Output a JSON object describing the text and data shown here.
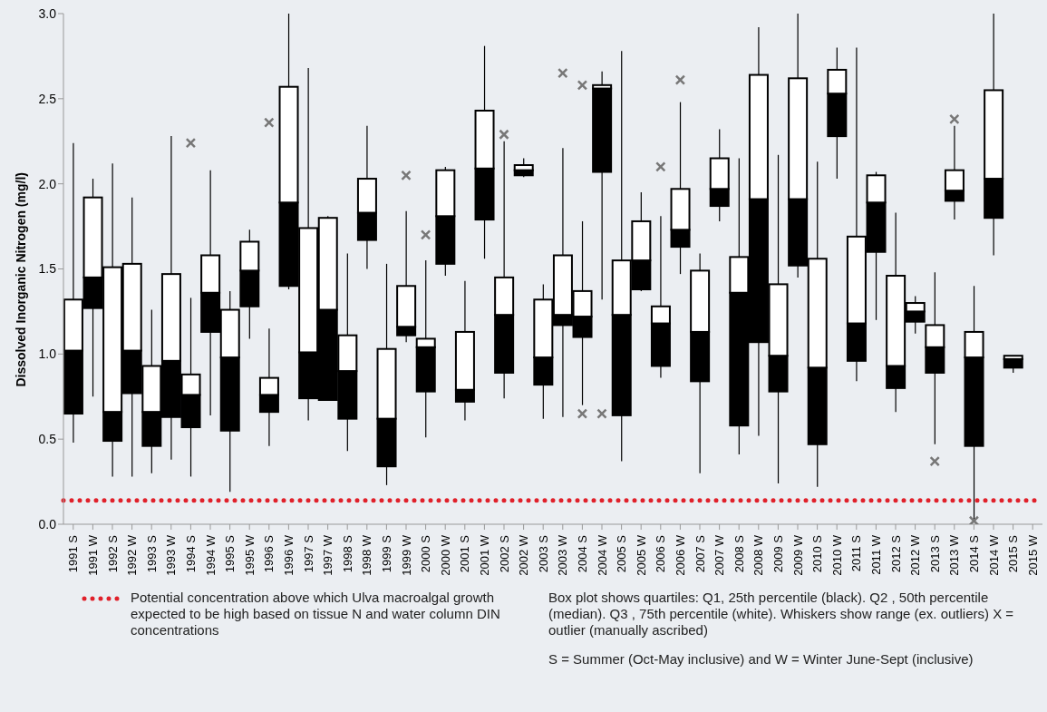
{
  "chart_data": {
    "type": "box",
    "ylabel": "Dissolved Inorganic Nitrogen (mg/l)",
    "categories": [
      "1991 S",
      "1991 W",
      "1992 S",
      "1992 W",
      "1993 S",
      "1993 W",
      "1994 S",
      "1994 W",
      "1995 S",
      "1995 W",
      "1996 S",
      "1996 W",
      "1997 S",
      "1997 W",
      "1998 S",
      "1998 W",
      "1999 S",
      "1999 W",
      "2000 S",
      "2000 W",
      "2001 S",
      "2001 W",
      "2002 S",
      "2002 W",
      "2003 S",
      "2003 W",
      "2004 S",
      "2004 W",
      "2005 S",
      "2005 W",
      "2006 S",
      "2006 W",
      "2007 S",
      "2007 W",
      "2008 S",
      "2008 W",
      "2009 S",
      "2009 W",
      "2010 S",
      "2010 W",
      "2011 S",
      "2011 W",
      "2012 S",
      "2012 W",
      "2013 S",
      "2013 W",
      "2014 S",
      "2014 W",
      "2015 S",
      "2015 W"
    ],
    "boxes": [
      {
        "low": 0.48,
        "q1": 0.65,
        "median": 1.02,
        "q3": 1.32,
        "high": 2.24
      },
      {
        "low": 0.75,
        "q1": 1.27,
        "median": 1.45,
        "q3": 1.92,
        "high": 2.03
      },
      {
        "low": 0.28,
        "q1": 0.49,
        "median": 0.66,
        "q3": 1.51,
        "high": 2.12
      },
      {
        "low": 0.28,
        "q1": 0.77,
        "median": 1.02,
        "q3": 1.53,
        "high": 1.92
      },
      {
        "low": 0.3,
        "q1": 0.46,
        "median": 0.66,
        "q3": 0.93,
        "high": 1.26
      },
      {
        "low": 0.38,
        "q1": 0.63,
        "median": 0.96,
        "q3": 1.47,
        "high": 2.28
      },
      {
        "low": 0.28,
        "q1": 0.57,
        "median": 0.76,
        "q3": 0.88,
        "high": 1.33,
        "outliers": [
          2.24
        ]
      },
      {
        "low": 0.64,
        "q1": 1.13,
        "median": 1.36,
        "q3": 1.58,
        "high": 2.08
      },
      {
        "low": 0.19,
        "q1": 0.55,
        "median": 0.98,
        "q3": 1.26,
        "high": 1.37
      },
      {
        "low": 1.09,
        "q1": 1.28,
        "median": 1.49,
        "q3": 1.66,
        "high": 1.73
      },
      {
        "low": 0.46,
        "q1": 0.66,
        "median": 0.76,
        "q3": 0.86,
        "high": 1.15,
        "outliers": [
          2.36
        ]
      },
      {
        "low": 1.38,
        "q1": 1.4,
        "median": 1.89,
        "q3": 2.57,
        "high": 3.0
      },
      {
        "low": 0.61,
        "q1": 0.74,
        "median": 1.01,
        "q3": 1.74,
        "high": 2.68
      },
      {
        "low": 0.73,
        "q1": 0.73,
        "median": 1.26,
        "q3": 1.8,
        "high": 1.81
      },
      {
        "low": 0.43,
        "q1": 0.62,
        "median": 0.9,
        "q3": 1.11,
        "high": 1.59
      },
      {
        "low": 1.5,
        "q1": 1.67,
        "median": 1.83,
        "q3": 2.03,
        "high": 2.34
      },
      {
        "low": 0.23,
        "q1": 0.34,
        "median": 0.62,
        "q3": 1.03,
        "high": 1.53
      },
      {
        "low": 1.07,
        "q1": 1.11,
        "median": 1.16,
        "q3": 1.4,
        "high": 1.84,
        "outliers": [
          2.05
        ]
      },
      {
        "low": 0.51,
        "q1": 0.78,
        "median": 1.04,
        "q3": 1.09,
        "high": 1.55,
        "outliers": [
          1.7
        ]
      },
      {
        "low": 1.46,
        "q1": 1.53,
        "median": 1.81,
        "q3": 2.08,
        "high": 2.1
      },
      {
        "low": 0.61,
        "q1": 0.72,
        "median": 0.79,
        "q3": 1.13,
        "high": 1.43
      },
      {
        "low": 1.56,
        "q1": 1.79,
        "median": 2.09,
        "q3": 2.43,
        "high": 2.81
      },
      {
        "low": 0.74,
        "q1": 0.89,
        "median": 1.23,
        "q3": 1.45,
        "high": 2.25,
        "outliers": [
          2.29
        ]
      },
      {
        "low": 2.04,
        "q1": 2.05,
        "median": 2.08,
        "q3": 2.11,
        "high": 2.15
      },
      {
        "low": 0.62,
        "q1": 0.82,
        "median": 0.98,
        "q3": 1.32,
        "high": 1.41
      },
      {
        "low": 0.63,
        "q1": 1.17,
        "median": 1.23,
        "q3": 1.58,
        "high": 2.21,
        "outliers": [
          2.65
        ]
      },
      {
        "low": 0.7,
        "q1": 1.1,
        "median": 1.22,
        "q3": 1.37,
        "high": 1.78,
        "outliers": [
          2.58,
          0.65
        ]
      },
      {
        "low": 1.32,
        "q1": 2.07,
        "median": 2.56,
        "q3": 2.58,
        "high": 2.66,
        "outliers": [
          0.65
        ]
      },
      {
        "low": 0.37,
        "q1": 0.64,
        "median": 1.23,
        "q3": 1.55,
        "high": 2.78
      },
      {
        "low": 1.37,
        "q1": 1.38,
        "median": 1.55,
        "q3": 1.78,
        "high": 1.95
      },
      {
        "low": 0.86,
        "q1": 0.93,
        "median": 1.18,
        "q3": 1.28,
        "high": 1.81,
        "outliers": [
          2.1
        ]
      },
      {
        "low": 1.47,
        "q1": 1.63,
        "median": 1.73,
        "q3": 1.97,
        "high": 2.48,
        "outliers": [
          2.61
        ]
      },
      {
        "low": 0.3,
        "q1": 0.84,
        "median": 1.13,
        "q3": 1.49,
        "high": 1.59
      },
      {
        "low": 1.78,
        "q1": 1.87,
        "median": 1.97,
        "q3": 2.15,
        "high": 2.32
      },
      {
        "low": 0.41,
        "q1": 0.58,
        "median": 1.36,
        "q3": 1.57,
        "high": 2.15
      },
      {
        "low": 0.52,
        "q1": 1.07,
        "median": 1.91,
        "q3": 2.64,
        "high": 2.92
      },
      {
        "low": 0.24,
        "q1": 0.78,
        "median": 0.99,
        "q3": 1.41,
        "high": 2.17
      },
      {
        "low": 1.45,
        "q1": 1.52,
        "median": 1.91,
        "q3": 2.62,
        "high": 3.0
      },
      {
        "low": 0.22,
        "q1": 0.47,
        "median": 0.92,
        "q3": 1.56,
        "high": 2.13
      },
      {
        "low": 2.03,
        "q1": 2.28,
        "median": 2.53,
        "q3": 2.67,
        "high": 2.8
      },
      {
        "low": 0.84,
        "q1": 0.96,
        "median": 1.18,
        "q3": 1.69,
        "high": 2.8
      },
      {
        "low": 1.2,
        "q1": 1.6,
        "median": 1.89,
        "q3": 2.05,
        "high": 2.07
      },
      {
        "low": 0.66,
        "q1": 0.8,
        "median": 0.93,
        "q3": 1.46,
        "high": 1.83
      },
      {
        "low": 1.12,
        "q1": 1.19,
        "median": 1.25,
        "q3": 1.3,
        "high": 1.34
      },
      {
        "low": 0.47,
        "q1": 0.89,
        "median": 1.04,
        "q3": 1.17,
        "high": 1.48,
        "outliers": [
          0.37
        ]
      },
      {
        "low": 1.79,
        "q1": 1.9,
        "median": 1.96,
        "q3": 2.08,
        "high": 2.34,
        "outliers": [
          2.38
        ]
      },
      {
        "low": 0.03,
        "q1": 0.46,
        "median": 0.98,
        "q3": 1.13,
        "high": 1.4,
        "outliers": [
          0.02
        ]
      },
      {
        "low": 1.58,
        "q1": 1.8,
        "median": 2.03,
        "q3": 2.55,
        "high": 3.0
      },
      {
        "low": 0.89,
        "q1": 0.92,
        "median": 0.97,
        "q3": 0.99,
        "high": 0.99
      },
      null
    ],
    "ylim": [
      0,
      3
    ],
    "yticks": [
      {
        "value": 0,
        "label": "0.0"
      },
      {
        "value": 0.5,
        "label": "0.5"
      },
      {
        "value": 1,
        "label": "1.0"
      },
      {
        "value": 1.5,
        "label": "1.5"
      },
      {
        "value": 2,
        "label": "2.0"
      },
      {
        "value": 2.5,
        "label": "2.5"
      },
      {
        "value": 3,
        "label": "3.0"
      }
    ],
    "ref_lines": [
      {
        "axis": "y",
        "value": 0.14,
        "label": "Potential concentration above which Ulva macroalgal growth expected to be high based on tissue N and water column DIN concentrations",
        "color": "#e0202a",
        "line_style": "dotted"
      }
    ],
    "annotations": [
      "Box plot shows quartiles: Q1, 25th percentile (black). Q2 , 50th percentile (median). Q3 , 75th percentile (white). Whiskers show range (ex. outliers) X = outlier (manually ascribed)",
      "S = Summer (Oct-May inclusive) and W = Winter June-Sept (inclusive)"
    ]
  }
}
